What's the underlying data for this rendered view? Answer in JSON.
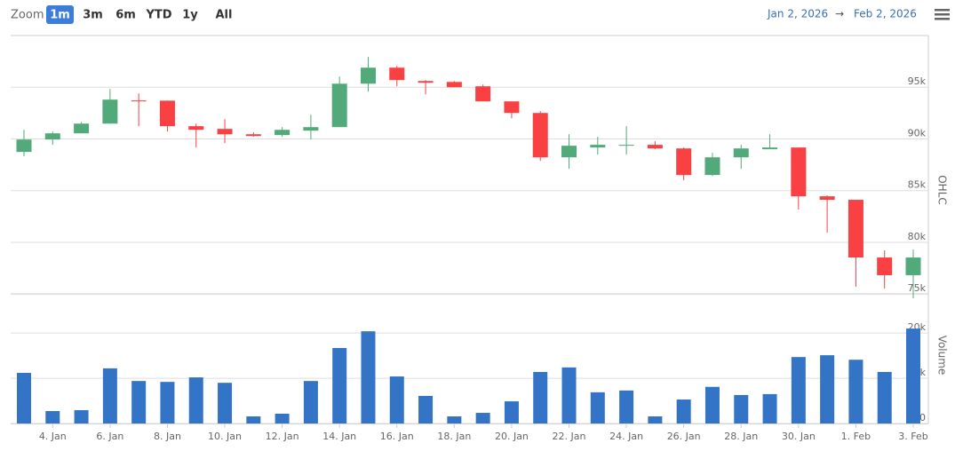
{
  "chart_data": {
    "type": "stock",
    "zoom_label": "Zoom",
    "zoom_buttons": [
      "1m",
      "3m",
      "6m",
      "YTD",
      "1y",
      "All"
    ],
    "zoom_selected": "1m",
    "range_from": "Jan 2, 2026",
    "range_arrow": "→",
    "range_to": "Feb 2, 2026",
    "categories": [
      null,
      "4. Jan",
      null,
      "6. Jan",
      null,
      "8. Jan",
      null,
      "10. Jan",
      null,
      "12. Jan",
      null,
      "14. Jan",
      null,
      "16. Jan",
      null,
      "18. Jan",
      null,
      "20. Jan",
      null,
      "22. Jan",
      null,
      "24. Jan",
      null,
      "26. Jan",
      null,
      "28. Jan",
      null,
      "30. Jan",
      null,
      "1. Feb",
      null,
      "3. Feb"
    ],
    "ohlc": {
      "name": "OHLC",
      "up_color": "#52aa7a",
      "down_color": "#f94144",
      "open": [
        88740,
        89940,
        90540,
        91480,
        93720,
        93700,
        91230,
        90970,
        90450,
        90370,
        90800,
        91140,
        95340,
        96890,
        95600,
        95510,
        95090,
        93630,
        92510,
        88220,
        89170,
        89340,
        89430,
        89080,
        86510,
        88220,
        89000,
        89170,
        84450,
        84110,
        78530,
        76820
      ],
      "high": [
        90880,
        90710,
        91650,
        94830,
        94400,
        93720,
        91480,
        91910,
        90630,
        91140,
        92340,
        96030,
        97920,
        97060,
        95690,
        95600,
        95260,
        93630,
        92680,
        90450,
        90200,
        91230,
        89770,
        89170,
        88650,
        89430,
        90450,
        89170,
        84540,
        84110,
        79220,
        79300
      ],
      "low": [
        88310,
        89430,
        90540,
        91480,
        91230,
        90710,
        89170,
        89600,
        90200,
        90200,
        89940,
        91140,
        94570,
        95090,
        94310,
        94980,
        93630,
        92000,
        87880,
        87110,
        88480,
        88480,
        89000,
        86000,
        86420,
        87110,
        89000,
        83170,
        80940,
        75700,
        75530,
        74590
      ],
      "close": [
        89940,
        90540,
        91480,
        93800,
        93630,
        91230,
        90880,
        90450,
        90280,
        90880,
        91140,
        95340,
        96890,
        95690,
        95430,
        95000,
        93630,
        92510,
        88220,
        89340,
        89430,
        89430,
        89080,
        86510,
        88220,
        89080,
        89170,
        84450,
        84110,
        78530,
        76820,
        78530
      ],
      "ylim": [
        74500,
        100000
      ],
      "yticks": [
        {
          "value": 75000,
          "label": "75k"
        },
        {
          "value": 80000,
          "label": "80k"
        },
        {
          "value": 85000,
          "label": "85k"
        },
        {
          "value": 90000,
          "label": "90k"
        },
        {
          "value": 95000,
          "label": "95k"
        }
      ]
    },
    "volume": {
      "name": "Volume",
      "color": "#3474c6",
      "values": [
        11200,
        2750,
        2950,
        12200,
        9400,
        9200,
        10200,
        9000,
        1570,
        2160,
        9400,
        16700,
        20400,
        10400,
        6100,
        1570,
        2350,
        4900,
        11400,
        12400,
        6900,
        7300,
        1570,
        5300,
        8100,
        6300,
        6500,
        14700,
        15100,
        14100,
        11400,
        21000
      ],
      "ylim": [
        0,
        22000
      ],
      "yticks": [
        0,
        {
          "value": 10000,
          "label": "10k"
        },
        {
          "value": 20000,
          "label": "20k"
        }
      ]
    },
    "grid": true
  }
}
